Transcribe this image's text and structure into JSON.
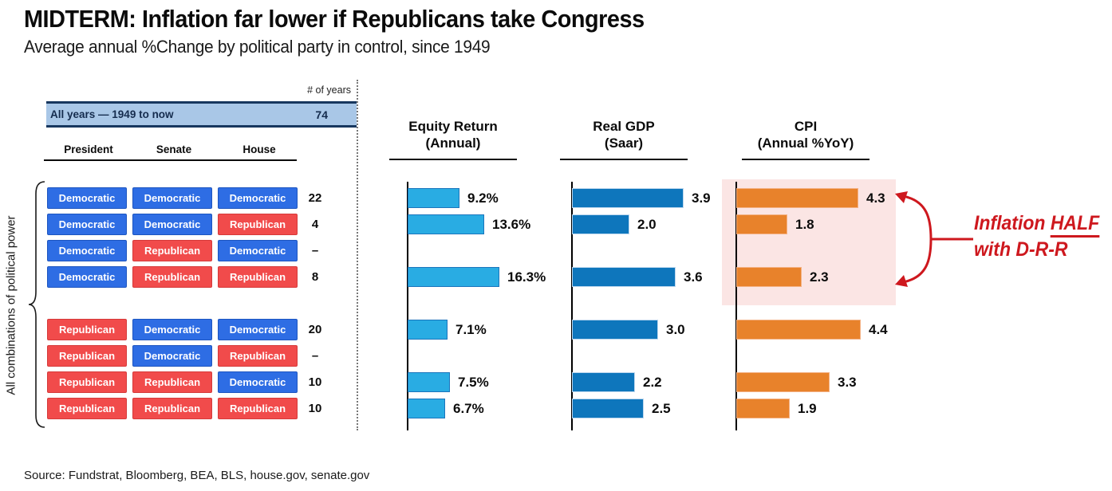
{
  "title": "MIDTERM: Inflation far lower if Republicans take Congress",
  "subtitle": "Average annual %Change by political party in control, since 1949",
  "table": {
    "years_header": "# of years",
    "all_years_label": "All years — 1949 to now",
    "all_years_value": "74",
    "columns": [
      "President",
      "Senate",
      "House"
    ],
    "side_label": "All combinations of political power",
    "rows": [
      {
        "president": "Democratic",
        "senate": "Democratic",
        "house": "Democratic",
        "years": "22"
      },
      {
        "president": "Democratic",
        "senate": "Democratic",
        "house": "Republican",
        "years": "4"
      },
      {
        "president": "Democratic",
        "senate": "Republican",
        "house": "Democratic",
        "years": "–"
      },
      {
        "president": "Democratic",
        "senate": "Republican",
        "house": "Republican",
        "years": "8"
      },
      {
        "president": "Republican",
        "senate": "Democratic",
        "house": "Democratic",
        "years": "20"
      },
      {
        "president": "Republican",
        "senate": "Democratic",
        "house": "Republican",
        "years": "–"
      },
      {
        "president": "Republican",
        "senate": "Republican",
        "house": "Democratic",
        "years": "10"
      },
      {
        "president": "Republican",
        "senate": "Republican",
        "house": "Republican",
        "years": "10"
      }
    ]
  },
  "panels": [
    {
      "title": "Equity Return",
      "subtitle": "(Annual)"
    },
    {
      "title": "Real GDP",
      "subtitle": "(Saar)"
    },
    {
      "title": "CPI",
      "subtitle": "(Annual %YoY)"
    }
  ],
  "chart_data": {
    "type": "bar",
    "orientation": "horizontal",
    "title": "MIDTERM: Inflation far lower if Republicans take Congress",
    "subtitle": "Average annual %Change by political party in control, since 1949",
    "categories": [
      "D-D-D",
      "D-D-R",
      "D-R-D",
      "D-R-R",
      "R-D-D",
      "R-D-R",
      "R-R-D",
      "R-R-R"
    ],
    "n_years": [
      "22",
      "4",
      "–",
      "8",
      "20",
      "–",
      "10",
      "10"
    ],
    "all_years_total": 74,
    "series": [
      {
        "name": "Equity Return (Annual)",
        "values": [
          9.2,
          13.6,
          null,
          16.3,
          7.1,
          null,
          7.5,
          6.7
        ],
        "labels": [
          "9.2%",
          "13.6%",
          "",
          "16.3%",
          "7.1%",
          "",
          "7.5%",
          "6.7%"
        ]
      },
      {
        "name": "Real GDP (Saar)",
        "values": [
          3.9,
          2.0,
          null,
          3.6,
          3.0,
          null,
          2.2,
          2.5
        ],
        "labels": [
          "3.9",
          "2.0",
          "",
          "3.6",
          "3.0",
          "",
          "2.2",
          "2.5"
        ]
      },
      {
        "name": "CPI (Annual %YoY)",
        "values": [
          4.3,
          1.8,
          null,
          2.3,
          4.4,
          null,
          3.3,
          1.9
        ],
        "labels": [
          "4.3",
          "1.8",
          "",
          "2.3",
          "4.4",
          "",
          "3.3",
          "1.9"
        ]
      }
    ],
    "highlighted_rows": [
      0,
      1,
      2,
      3
    ],
    "highlighted_series": "CPI (Annual %YoY)",
    "gridlines": false,
    "value_labels_position": "end-of-bar"
  },
  "annotation": {
    "line1_prefix": "Inflation ",
    "line1_emphasis": "HALF",
    "line2": "with D-R-R"
  },
  "source": "Source: Fundstrat, Bloomberg, BEA, BLS, house.gov, senate.gov",
  "colors": {
    "democrat": "#2E6DE4",
    "democrat_border": "#1D55C0",
    "republican": "#F14B4B",
    "republican_border": "#D63A3A",
    "band_blue": "#A9C7E7",
    "band_border": "#17375E",
    "equity_bar": "#29ACE3",
    "equity_bar_border": "#1B75BC",
    "gdp_bar": "#0E76BC",
    "gdp_bar_border": "#BDD7EE",
    "cpi_bar": "#E8822B",
    "cpi_bar_border": "#F4B183",
    "highlight": "#FBE5E4",
    "annotation_red": "#CE181E"
  }
}
